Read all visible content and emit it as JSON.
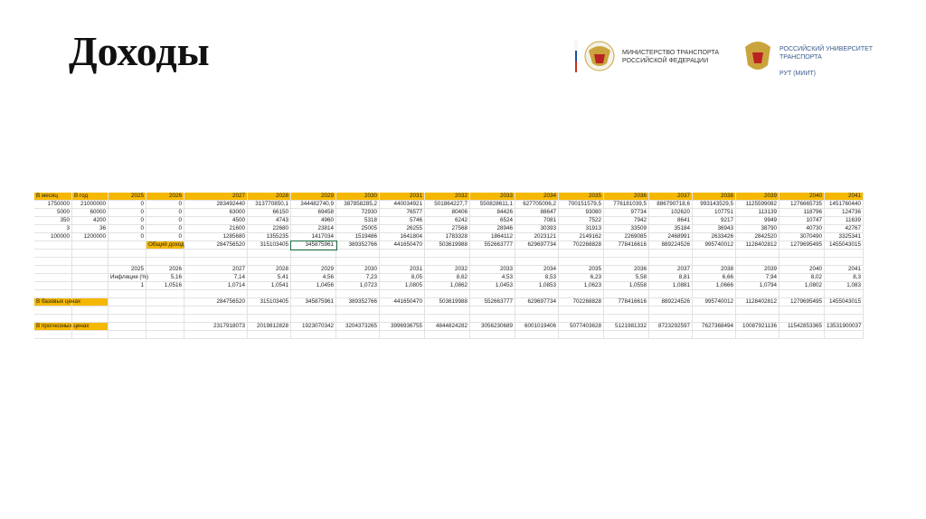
{
  "header": {
    "title": "Доходы",
    "ministry": [
      "МИНИСТЕРСТВО ТРАНСПОРТА",
      "РОССИЙСКОЙ ФЕДЕРАЦИИ"
    ],
    "university": [
      "РОССИЙСКИЙ УНИВЕРСИТЕТ",
      "ТРАНСПОРТА",
      "РУТ (МИИТ)"
    ]
  },
  "table": {
    "columns": [
      "В месяц",
      "В год",
      "2025",
      "2026",
      "2027",
      "2028",
      "2029",
      "2030",
      "2031",
      "2032",
      "2033",
      "2034",
      "2035",
      "2036",
      "2037",
      "2038",
      "2039",
      "2040",
      "2041"
    ],
    "rows": [
      [
        "1750000",
        "21000000",
        "0",
        "0",
        "283492440",
        "313770850,1",
        "344482740,9",
        "387858285,2",
        "440034921",
        "501864227,7",
        "550828611,1",
        "627705006,2",
        "700151579,5",
        "776181039,5",
        "886790718,6",
        "993143529,5",
        "1125599082",
        "1276665735",
        "1451760440"
      ],
      [
        "5000",
        "60000",
        "0",
        "0",
        "63000",
        "66150",
        "69458",
        "72930",
        "76577",
        "80406",
        "84426",
        "88647",
        "93080",
        "97734",
        "102620",
        "107751",
        "113139",
        "118796",
        "124736"
      ],
      [
        "350",
        "4200",
        "0",
        "0",
        "4500",
        "4743",
        "4960",
        "5318",
        "5746",
        "6242",
        "6524",
        "7081",
        "7522",
        "7942",
        "8641",
        "9217",
        "9949",
        "10747",
        "11639"
      ],
      [
        "3",
        "36",
        "0",
        "0",
        "21600",
        "22680",
        "23814",
        "25005",
        "26255",
        "27568",
        "28946",
        "30393",
        "31913",
        "33509",
        "35184",
        "36943",
        "38790",
        "40730",
        "42767"
      ],
      [
        "100000",
        "1200000",
        "0",
        "0",
        "1285680",
        "1355235",
        "1417034",
        "1519486",
        "1641804",
        "1783328",
        "1864112",
        "2023121",
        "2149162",
        "2269085",
        "2468991",
        "2633426",
        "2842520",
        "3070490",
        "3325341"
      ],
      [
        null,
        null,
        null,
        "Общий доход",
        "284756520",
        "315103405",
        "345875961",
        "389352766",
        "441650470",
        "503619988",
        "552663777",
        "629697734",
        "702268828",
        "778416616",
        "889224526",
        "995740012",
        "1128402812",
        "1279695495",
        "1455043015"
      ],
      [],
      [],
      [
        null,
        null,
        "2025",
        "2026",
        "2027",
        "2028",
        "2029",
        "2030",
        "2031",
        "2032",
        "2033",
        "2034",
        "2035",
        "2036",
        "2037",
        "2038",
        "2039",
        "2040",
        "2041"
      ],
      [
        null,
        null,
        "Инфляция (%)",
        "5,16",
        "7,14",
        "5,41",
        "4,56",
        "7,23",
        "8,05",
        "8,62",
        "4,53",
        "8,53",
        "6,23",
        "5,58",
        "8,81",
        "6,66",
        "7,94",
        "8,02",
        "8,3"
      ],
      [
        null,
        null,
        "1",
        "1,0516",
        "1,0714",
        "1,0541",
        "1,0456",
        "1,0723",
        "1,0805",
        "1,0862",
        "1,0453",
        "1,0853",
        "1,0623",
        "1,0558",
        "1,0881",
        "1,0666",
        "1,0794",
        "1,0802",
        "1,083"
      ],
      [],
      [
        "В базовых ценах",
        null,
        null,
        null,
        "284756520",
        "315103405",
        "345875961",
        "389352766",
        "441650470",
        "503619988",
        "552663777",
        "629697734",
        "702268828",
        "778416616",
        "889224526",
        "995740012",
        "1128402812",
        "1279695495",
        "1455043015"
      ],
      [],
      [],
      [
        "В прогнозных ценах",
        null,
        null,
        null,
        "2317918073",
        "2019812828",
        "1923070342",
        "3204373265",
        "3996936755",
        "4844824282",
        "3056230689",
        "6001019406",
        "5077403628",
        "5121981332",
        "8723292597",
        "7627368494",
        "10087921136",
        "11542853365",
        "13531900037"
      ],
      []
    ]
  }
}
